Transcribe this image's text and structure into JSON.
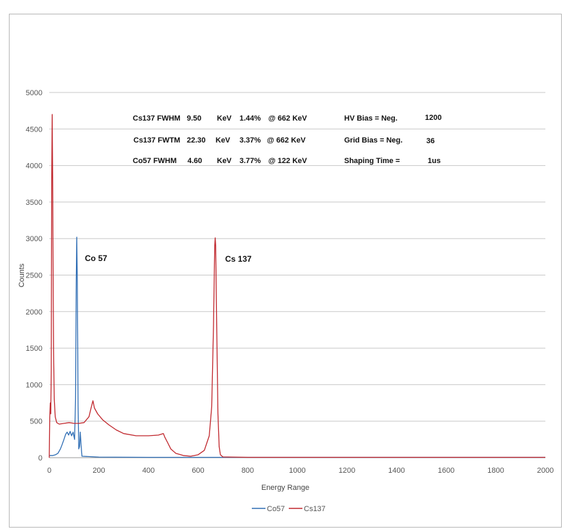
{
  "chart_data": {
    "type": "line",
    "xlabel": "Energy Range",
    "ylabel": "Counts",
    "xlim": [
      0,
      2000
    ],
    "ylim": [
      0,
      5000
    ],
    "xticks": [
      "0",
      "200",
      "400",
      "600",
      "800",
      "1000",
      "1200",
      "1400",
      "1600",
      "1800",
      "2000"
    ],
    "yticks": [
      "0",
      "500",
      "1000",
      "1500",
      "2000",
      "2500",
      "3000",
      "3500",
      "4000",
      "4500",
      "5000"
    ],
    "grid": "horizontal",
    "legend_position": "bottom",
    "series": [
      {
        "name": "Co57",
        "color": "#2e6db4",
        "points": [
          [
            0,
            30
          ],
          [
            15,
            30
          ],
          [
            25,
            40
          ],
          [
            35,
            60
          ],
          [
            45,
            120
          ],
          [
            52,
            180
          ],
          [
            60,
            260
          ],
          [
            66,
            320
          ],
          [
            72,
            350
          ],
          [
            78,
            310
          ],
          [
            84,
            360
          ],
          [
            90,
            300
          ],
          [
            96,
            350
          ],
          [
            102,
            250
          ],
          [
            106,
            800
          ],
          [
            109,
            2500
          ],
          [
            111,
            3020
          ],
          [
            113,
            2400
          ],
          [
            116,
            700
          ],
          [
            119,
            120
          ],
          [
            122,
            150
          ],
          [
            125,
            350
          ],
          [
            128,
            180
          ],
          [
            132,
            20
          ],
          [
            200,
            8
          ],
          [
            400,
            5
          ],
          [
            2000,
            5
          ]
        ]
      },
      {
        "name": "Cs137",
        "color": "#c0272d",
        "points": [
          [
            0,
            0
          ],
          [
            2,
            550
          ],
          [
            4,
            750
          ],
          [
            6,
            600
          ],
          [
            8,
            1200
          ],
          [
            10,
            3800
          ],
          [
            12,
            4700
          ],
          [
            14,
            3600
          ],
          [
            16,
            2200
          ],
          [
            18,
            1300
          ],
          [
            20,
            800
          ],
          [
            24,
            560
          ],
          [
            30,
            480
          ],
          [
            40,
            460
          ],
          [
            60,
            470
          ],
          [
            80,
            480
          ],
          [
            100,
            470
          ],
          [
            120,
            470
          ],
          [
            140,
            480
          ],
          [
            160,
            560
          ],
          [
            170,
            700
          ],
          [
            176,
            780
          ],
          [
            182,
            680
          ],
          [
            195,
            600
          ],
          [
            215,
            520
          ],
          [
            240,
            450
          ],
          [
            270,
            380
          ],
          [
            300,
            330
          ],
          [
            350,
            300
          ],
          [
            400,
            300
          ],
          [
            440,
            310
          ],
          [
            460,
            330
          ],
          [
            466,
            280
          ],
          [
            475,
            220
          ],
          [
            490,
            120
          ],
          [
            510,
            60
          ],
          [
            540,
            30
          ],
          [
            570,
            20
          ],
          [
            600,
            40
          ],
          [
            625,
            100
          ],
          [
            645,
            300
          ],
          [
            655,
            700
          ],
          [
            662,
            1800
          ],
          [
            667,
            2900
          ],
          [
            669,
            3010
          ],
          [
            671,
            2900
          ],
          [
            675,
            1800
          ],
          [
            680,
            600
          ],
          [
            685,
            150
          ],
          [
            690,
            40
          ],
          [
            700,
            10
          ],
          [
            800,
            5
          ],
          [
            2000,
            5
          ]
        ]
      }
    ],
    "annotations": {
      "rows": [
        [
          "Cs137  FWHM",
          "9.50",
          "KeV",
          "1.44%",
          "@ 662 KeV",
          "HV Bias =  Neg.",
          "1200"
        ],
        [
          "Cs137  FWTM",
          "22.30",
          "KeV",
          "3.37%",
          "@ 662 KeV",
          "Grid Bias =  Neg.",
          "36"
        ],
        [
          "Co57  FWHM",
          "4.60",
          "KeV",
          "3.77%",
          "@ 122 KeV",
          "Shaping Time =",
          "1us"
        ]
      ],
      "peak_labels": [
        "Co 57",
        "Cs 137"
      ]
    }
  }
}
